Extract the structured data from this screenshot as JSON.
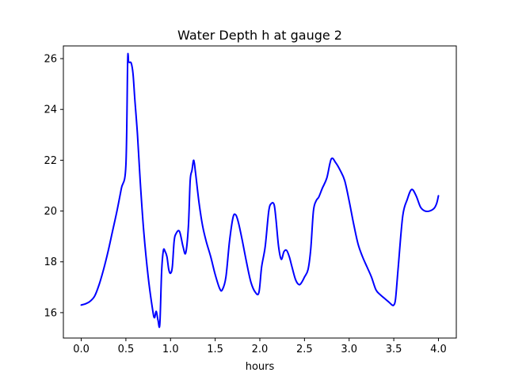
{
  "chart_data": {
    "type": "line",
    "title": "Water Depth h at gauge 2",
    "xlabel": "hours",
    "ylabel": "",
    "xlim": [
      -0.2,
      4.2
    ],
    "ylim": [
      15.0,
      26.5
    ],
    "grid": false,
    "x_ticks": [
      0.0,
      0.5,
      1.0,
      1.5,
      2.0,
      2.5,
      3.0,
      3.5,
      4.0
    ],
    "x_tick_labels": [
      "0.0",
      "0.5",
      "1.0",
      "1.5",
      "2.0",
      "2.5",
      "3.0",
      "3.5",
      "4.0"
    ],
    "y_ticks": [
      16,
      18,
      20,
      22,
      24,
      26
    ],
    "y_tick_labels": [
      "16",
      "18",
      "20",
      "22",
      "24",
      "26"
    ],
    "series": [
      {
        "color": "#0000ff",
        "x": [
          0.0,
          0.05,
          0.1,
          0.15,
          0.2,
          0.25,
          0.3,
          0.35,
          0.4,
          0.45,
          0.5,
          0.52,
          0.53,
          0.54,
          0.56,
          0.58,
          0.6,
          0.63,
          0.66,
          0.7,
          0.75,
          0.8,
          0.82,
          0.84,
          0.86,
          0.88,
          0.9,
          0.92,
          0.94,
          0.96,
          0.98,
          1.0,
          1.02,
          1.04,
          1.06,
          1.1,
          1.14,
          1.17,
          1.2,
          1.22,
          1.24,
          1.26,
          1.28,
          1.32,
          1.36,
          1.4,
          1.45,
          1.5,
          1.55,
          1.58,
          1.62,
          1.66,
          1.7,
          1.73,
          1.76,
          1.8,
          1.85,
          1.9,
          1.95,
          1.99,
          2.02,
          2.06,
          2.1,
          2.13,
          2.16,
          2.18,
          2.21,
          2.24,
          2.27,
          2.3,
          2.33,
          2.36,
          2.4,
          2.44,
          2.47,
          2.5,
          2.54,
          2.57,
          2.6,
          2.63,
          2.66,
          2.7,
          2.75,
          2.8,
          2.85,
          2.9,
          2.95,
          3.0,
          3.05,
          3.1,
          3.15,
          3.2,
          3.25,
          3.3,
          3.35,
          3.4,
          3.45,
          3.48,
          3.5,
          3.52,
          3.55,
          3.6,
          3.65,
          3.7,
          3.75,
          3.8,
          3.85,
          3.9,
          3.95,
          3.98,
          4.0
        ],
        "y": [
          16.3,
          16.35,
          16.45,
          16.65,
          17.1,
          17.7,
          18.4,
          19.2,
          20.0,
          20.9,
          21.8,
          25.9,
          25.88,
          25.85,
          25.82,
          25.4,
          24.4,
          23.0,
          21.2,
          19.2,
          17.4,
          16.1,
          15.8,
          16.05,
          15.7,
          15.55,
          17.6,
          18.45,
          18.4,
          18.2,
          17.7,
          17.55,
          17.8,
          18.8,
          19.1,
          19.2,
          18.6,
          18.35,
          19.4,
          21.2,
          21.6,
          22.0,
          21.5,
          20.3,
          19.4,
          18.8,
          18.2,
          17.5,
          16.95,
          16.9,
          17.4,
          18.8,
          19.75,
          19.85,
          19.55,
          18.9,
          18.0,
          17.2,
          16.8,
          16.8,
          17.8,
          18.6,
          20.0,
          20.3,
          20.25,
          19.7,
          18.6,
          18.1,
          18.4,
          18.45,
          18.2,
          17.8,
          17.3,
          17.1,
          17.2,
          17.4,
          17.7,
          18.5,
          20.0,
          20.4,
          20.55,
          20.9,
          21.3,
          22.05,
          21.9,
          21.6,
          21.2,
          20.4,
          19.5,
          18.7,
          18.2,
          17.8,
          17.4,
          16.9,
          16.7,
          16.55,
          16.4,
          16.3,
          16.3,
          16.55,
          17.8,
          19.8,
          20.45,
          20.85,
          20.6,
          20.15,
          20.0,
          20.0,
          20.1,
          20.3,
          20.6
        ]
      }
    ]
  }
}
